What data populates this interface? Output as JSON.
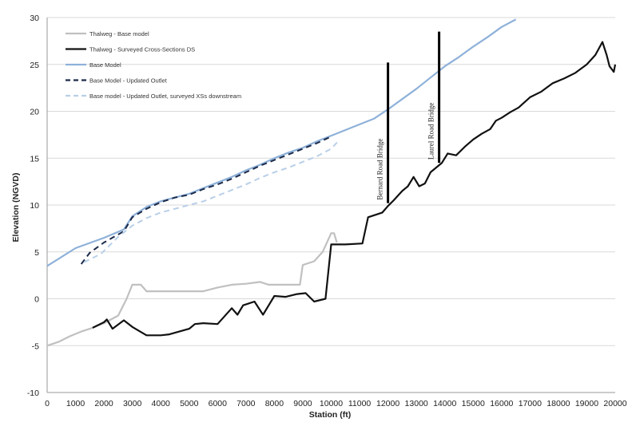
{
  "chart_data": {
    "type": "line",
    "xlabel": "Station (ft)",
    "ylabel": "Elevation (NGVD)",
    "xlim": [
      0,
      20000
    ],
    "ylim": [
      -10,
      30
    ],
    "xticks": [
      0,
      1000,
      2000,
      3000,
      4000,
      5000,
      6000,
      7000,
      8000,
      9000,
      10000,
      11000,
      12000,
      13000,
      14000,
      15000,
      16000,
      17000,
      18000,
      19000,
      20000
    ],
    "yticks": [
      -10,
      -5,
      0,
      5,
      10,
      15,
      20,
      25,
      30
    ],
    "grid": "horizontal",
    "legend_position": "top-left",
    "series": [
      {
        "name": "Thalweg - Base model",
        "color": "#c0c0c0",
        "dash": "solid",
        "points": [
          [
            0,
            -5
          ],
          [
            400,
            -4.6
          ],
          [
            800,
            -4
          ],
          [
            1200,
            -3.5
          ],
          [
            1600,
            -3.1
          ],
          [
            2000,
            -2.6
          ],
          [
            2500,
            -1.8
          ],
          [
            2800,
            0
          ],
          [
            3000,
            1.5
          ],
          [
            3300,
            1.5
          ],
          [
            3500,
            0.8
          ],
          [
            4000,
            0.8
          ],
          [
            5000,
            0.8
          ],
          [
            5500,
            0.8
          ],
          [
            6000,
            1.2
          ],
          [
            6500,
            1.5
          ],
          [
            7000,
            1.6
          ],
          [
            7500,
            1.8
          ],
          [
            7800,
            1.5
          ],
          [
            8500,
            1.5
          ],
          [
            8900,
            1.5
          ],
          [
            9000,
            3.6
          ],
          [
            9400,
            4
          ],
          [
            9700,
            5
          ],
          [
            10000,
            7
          ],
          [
            10100,
            7
          ],
          [
            10200,
            6
          ]
        ]
      },
      {
        "name": "Thalweg - Surveyed Cross-Sections DS",
        "color": "#111111",
        "dash": "solid",
        "points": [
          [
            1600,
            -3.1
          ],
          [
            2000,
            -2.5
          ],
          [
            2100,
            -2.2
          ],
          [
            2300,
            -3.2
          ],
          [
            2700,
            -2.3
          ],
          [
            3000,
            -3
          ],
          [
            3500,
            -3.9
          ],
          [
            4000,
            -3.9
          ],
          [
            4300,
            -3.8
          ],
          [
            5000,
            -3.2
          ],
          [
            5200,
            -2.7
          ],
          [
            5500,
            -2.6
          ],
          [
            6000,
            -2.7
          ],
          [
            6500,
            -1
          ],
          [
            6700,
            -1.7
          ],
          [
            6900,
            -0.7
          ],
          [
            7300,
            -0.3
          ],
          [
            7600,
            -1.7
          ],
          [
            8000,
            0.3
          ],
          [
            8400,
            0.2
          ],
          [
            8800,
            0.5
          ],
          [
            9100,
            0.6
          ],
          [
            9400,
            -0.3
          ],
          [
            9800,
            0
          ],
          [
            10000,
            5.8
          ],
          [
            10500,
            5.8
          ],
          [
            11100,
            5.9
          ],
          [
            11300,
            8.7
          ],
          [
            11600,
            9
          ],
          [
            11800,
            9.2
          ],
          [
            12000,
            9.9
          ],
          [
            12200,
            10.5
          ],
          [
            12500,
            11.5
          ],
          [
            12700,
            12
          ],
          [
            12900,
            13
          ],
          [
            13100,
            12
          ],
          [
            13300,
            12.3
          ],
          [
            13500,
            13.5
          ],
          [
            13700,
            14
          ],
          [
            13900,
            14.5
          ],
          [
            14100,
            15.5
          ],
          [
            14400,
            15.3
          ],
          [
            14700,
            16.2
          ],
          [
            15000,
            17
          ],
          [
            15300,
            17.6
          ],
          [
            15600,
            18.1
          ],
          [
            15800,
            19
          ],
          [
            16000,
            19.3
          ],
          [
            16300,
            19.9
          ],
          [
            16600,
            20.4
          ],
          [
            17000,
            21.5
          ],
          [
            17400,
            22.1
          ],
          [
            17800,
            23
          ],
          [
            18200,
            23.5
          ],
          [
            18600,
            24.1
          ],
          [
            19000,
            25
          ],
          [
            19300,
            26
          ],
          [
            19550,
            27.4
          ],
          [
            19700,
            26
          ],
          [
            19800,
            24.8
          ],
          [
            19950,
            24.2
          ],
          [
            20000,
            25
          ]
        ]
      },
      {
        "name": "Base Model",
        "color": "#8eb1d9",
        "dash": "solid",
        "points": [
          [
            0,
            3.5
          ],
          [
            1000,
            5.4
          ],
          [
            2000,
            6.5
          ],
          [
            2700,
            7.4
          ],
          [
            3000,
            8.8
          ],
          [
            3500,
            9.8
          ],
          [
            4000,
            10.4
          ],
          [
            4500,
            10.8
          ],
          [
            5000,
            11.2
          ],
          [
            5500,
            11.8
          ],
          [
            6000,
            12.4
          ],
          [
            6500,
            13
          ],
          [
            7000,
            13.7
          ],
          [
            7500,
            14.3
          ],
          [
            8000,
            15
          ],
          [
            8500,
            15.6
          ],
          [
            9000,
            16.1
          ],
          [
            9500,
            16.8
          ],
          [
            10000,
            17.4
          ],
          [
            10500,
            18
          ],
          [
            11000,
            18.6
          ],
          [
            11500,
            19.2
          ],
          [
            12000,
            20.2
          ],
          [
            12500,
            21.3
          ],
          [
            13000,
            22.4
          ],
          [
            13500,
            23.6
          ],
          [
            14000,
            24.8
          ],
          [
            14500,
            25.8
          ],
          [
            15000,
            26.9
          ],
          [
            15500,
            27.9
          ],
          [
            16000,
            29
          ],
          [
            16500,
            29.8
          ]
        ]
      },
      {
        "name": "Base Model - Updated Outlet",
        "color": "#1c2a4a",
        "dash": "dashed",
        "points": [
          [
            1200,
            3.7
          ],
          [
            1500,
            4.9
          ],
          [
            2000,
            6
          ],
          [
            2700,
            7.2
          ],
          [
            3000,
            8.7
          ],
          [
            3500,
            9.6
          ],
          [
            4000,
            10.3
          ],
          [
            4500,
            10.8
          ],
          [
            5000,
            11.1
          ],
          [
            5500,
            11.7
          ],
          [
            6000,
            12.2
          ],
          [
            6500,
            12.8
          ],
          [
            7000,
            13.5
          ],
          [
            7500,
            14.2
          ],
          [
            8000,
            14.8
          ],
          [
            8500,
            15.4
          ],
          [
            9000,
            16
          ],
          [
            9500,
            16.6
          ],
          [
            10000,
            17.3
          ]
        ]
      },
      {
        "name": "Base model - Updated Outlet, surveyed XSs downstream",
        "color": "#b8cfe8",
        "dash": "dashed",
        "points": [
          [
            1300,
            3.9
          ],
          [
            1900,
            4.8
          ],
          [
            2500,
            6.6
          ],
          [
            3000,
            7.8
          ],
          [
            3500,
            8.6
          ],
          [
            4000,
            9.2
          ],
          [
            4500,
            9.6
          ],
          [
            5000,
            10
          ],
          [
            5500,
            10.4
          ],
          [
            6000,
            11
          ],
          [
            6500,
            11.6
          ],
          [
            7000,
            12.2
          ],
          [
            7500,
            12.9
          ],
          [
            8000,
            13.5
          ],
          [
            8500,
            14
          ],
          [
            9000,
            14.6
          ],
          [
            9500,
            15.2
          ],
          [
            10000,
            16
          ],
          [
            10300,
            17
          ]
        ]
      }
    ],
    "bridges": [
      {
        "label": "Bernard Road Bridge",
        "x": 12000,
        "y_bottom": 10.2,
        "y_top": 25.2
      },
      {
        "label": "Laurel Road Bridge",
        "x": 13800,
        "y_bottom": 14.5,
        "y_top": 28.5
      }
    ]
  }
}
